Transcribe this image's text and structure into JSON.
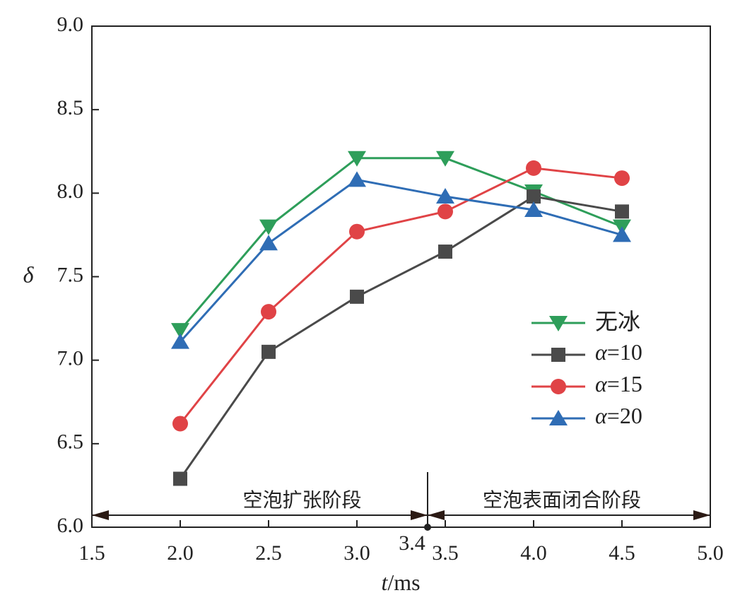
{
  "chart_data": {
    "type": "line",
    "xlabel": {
      "var": "t",
      "unit": "/ms"
    },
    "ylabel": "δ",
    "xlim": [
      1.5,
      5.0
    ],
    "ylim": [
      6.0,
      9.0
    ],
    "x_ticks": [
      "1.5",
      "2.0",
      "2.5",
      "3.0",
      "3.5",
      "4.0",
      "4.5",
      "5.0"
    ],
    "y_ticks": [
      "6.0",
      "6.5",
      "7.0",
      "7.5",
      "8.0",
      "8.5",
      "9.0"
    ],
    "grid": false,
    "legend_position": "center-right",
    "x": [
      2.0,
      2.5,
      3.0,
      3.5,
      4.0,
      4.5
    ],
    "series": [
      {
        "name": "无冰",
        "name_var": "",
        "name_suffix": "",
        "color": "#2e9e5a",
        "marker": "triangle-down",
        "values": [
          7.18,
          7.8,
          8.21,
          8.21,
          8.01,
          7.8
        ]
      },
      {
        "name": "α=10",
        "name_var": "α",
        "name_suffix": "=10",
        "color": "#4a4a4a",
        "marker": "square",
        "values": [
          6.29,
          7.05,
          7.38,
          7.65,
          7.98,
          7.89
        ]
      },
      {
        "name": "α=15",
        "name_var": "α",
        "name_suffix": "=15",
        "color": "#e04346",
        "marker": "circle",
        "values": [
          6.62,
          7.29,
          7.77,
          7.89,
          8.15,
          8.09
        ]
      },
      {
        "name": "α=20",
        "name_var": "α",
        "name_suffix": "=20",
        "color": "#2f6db5",
        "marker": "triangle-up",
        "values": [
          7.11,
          7.7,
          8.08,
          7.98,
          7.9,
          7.75
        ]
      }
    ],
    "annotations": {
      "split_x": 3.4,
      "split_label": "3.4",
      "phase_left": "空泡扩张阶段",
      "phase_right": "空泡表面闭合阶段"
    }
  }
}
